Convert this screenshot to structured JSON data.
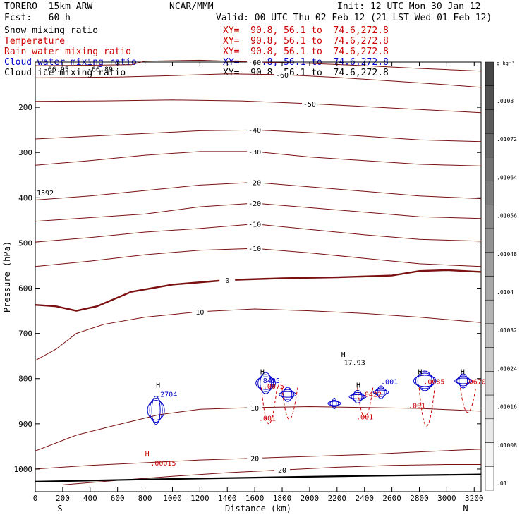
{
  "header": {
    "model": "TORERO  15km ARW",
    "org": "NCAR/MMM",
    "init": "Init: 12 UTC Mon 30 Jan 12",
    "fcst": "Fcst:   60 h",
    "valid": "Valid: 00 UTC Thu 02 Feb 12 (21 LST Wed 01 Feb 12)"
  },
  "fields": [
    {
      "name": "Snow mixing ratio",
      "xy": "",
      "color": "#000000"
    },
    {
      "name": "Temperature",
      "xy": "XY=  90.8, 56.1 to  74.6,272.8",
      "color": "#cc0000"
    },
    {
      "name": "Rain water mixing ratio",
      "xy": "XY=  90.8, 56.1 to  74.6,272.8",
      "color": "#cc0000"
    },
    {
      "name": "Cloud water mixing ratio",
      "xy": "XY=  90.8, 56.1 to  74.6,272.8",
      "color": "#0000cc"
    },
    {
      "name": "Cloud ice mixing ratio",
      "xy": "XY=  90.8, 56.1 to  74.6,272.8",
      "color": "#000000"
    }
  ],
  "snow_xy": "XY=  90.8, 56.1 to  74.6,272.8",
  "chart_data": {
    "type": "cross-section",
    "xlabel": "Distance (km)",
    "ylabel": "Pressure (hPa)",
    "xlim": [
      0,
      3250
    ],
    "ylim": [
      1050,
      100
    ],
    "x_ticks": [
      0,
      200,
      400,
      600,
      800,
      1000,
      1200,
      1400,
      1600,
      1800,
      2000,
      2200,
      2400,
      2600,
      2800,
      3000,
      3200
    ],
    "y_ticks": [
      200,
      300,
      400,
      500,
      600,
      700,
      800,
      900,
      1000
    ],
    "x_end_labels": {
      "left": "S",
      "right": "N"
    },
    "colorbar": {
      "unit": "g kg⁻¹",
      "labels": [
        ".0108",
        ".01072",
        ".01064",
        ".01056",
        ".01048",
        ".0104",
        ".01032",
        ".01024",
        ".01016",
        ".01008",
        ".01"
      ],
      "levels": 18
    },
    "temperature_contours": [
      {
        "label": "-60",
        "points": [
          [
            0,
            108
          ],
          [
            400,
            107
          ],
          [
            700,
            106
          ],
          [
            800,
            98
          ],
          [
            1200,
            96
          ],
          [
            1600,
            100
          ],
          [
            2000,
            103
          ],
          [
            2400,
            108
          ],
          [
            2800,
            114
          ],
          [
            3250,
            120
          ]
        ]
      },
      {
        "label": "-60",
        "points": [
          [
            0,
            135
          ],
          [
            600,
            133
          ],
          [
            1000,
            130
          ],
          [
            1400,
            126
          ],
          [
            1800,
            128
          ],
          [
            2200,
            134
          ],
          [
            2600,
            142
          ],
          [
            3000,
            150
          ],
          [
            3250,
            156
          ]
        ]
      },
      {
        "label": "-50",
        "points": [
          [
            0,
            187
          ],
          [
            500,
            186
          ],
          [
            1000,
            184
          ],
          [
            1500,
            186
          ],
          [
            2000,
            192
          ],
          [
            2500,
            200
          ],
          [
            3000,
            208
          ],
          [
            3250,
            212
          ]
        ]
      },
      {
        "label": "-40",
        "points": [
          [
            0,
            270
          ],
          [
            400,
            264
          ],
          [
            800,
            258
          ],
          [
            1200,
            252
          ],
          [
            1600,
            250
          ],
          [
            2000,
            256
          ],
          [
            2400,
            264
          ],
          [
            2800,
            272
          ],
          [
            3250,
            276
          ]
        ]
      },
      {
        "label": "-30",
        "points": [
          [
            0,
            328
          ],
          [
            400,
            318
          ],
          [
            800,
            306
          ],
          [
            1200,
            298
          ],
          [
            1600,
            298
          ],
          [
            2000,
            310
          ],
          [
            2400,
            318
          ],
          [
            2800,
            326
          ],
          [
            3250,
            330
          ]
        ]
      },
      {
        "label": "-20",
        "points": [
          [
            0,
            405
          ],
          [
            400,
            396
          ],
          [
            800,
            384
          ],
          [
            1200,
            372
          ],
          [
            1600,
            366
          ],
          [
            2000,
            376
          ],
          [
            2400,
            386
          ],
          [
            2800,
            396
          ],
          [
            3250,
            402
          ]
        ]
      },
      {
        "label": "-20",
        "points": [
          [
            0,
            452
          ],
          [
            400,
            444
          ],
          [
            800,
            436
          ],
          [
            1200,
            420
          ],
          [
            1600,
            412
          ],
          [
            2000,
            422
          ],
          [
            2400,
            432
          ],
          [
            2800,
            442
          ],
          [
            3250,
            446
          ]
        ]
      },
      {
        "label": "-10",
        "points": [
          [
            0,
            498
          ],
          [
            400,
            488
          ],
          [
            800,
            476
          ],
          [
            1200,
            468
          ],
          [
            1600,
            458
          ],
          [
            2000,
            470
          ],
          [
            2400,
            482
          ],
          [
            2800,
            492
          ],
          [
            3250,
            496
          ]
        ]
      },
      {
        "label": "-10",
        "points": [
          [
            0,
            552
          ],
          [
            400,
            540
          ],
          [
            800,
            526
          ],
          [
            1200,
            516
          ],
          [
            1600,
            512
          ],
          [
            2000,
            522
          ],
          [
            2400,
            534
          ],
          [
            2800,
            546
          ],
          [
            3250,
            552
          ]
        ]
      },
      {
        "label": "0",
        "points": [
          [
            0,
            637
          ],
          [
            150,
            640
          ],
          [
            300,
            650
          ],
          [
            450,
            640
          ],
          [
            700,
            608
          ],
          [
            1000,
            592
          ],
          [
            1400,
            582
          ],
          [
            1800,
            578
          ],
          [
            2200,
            576
          ],
          [
            2600,
            572
          ],
          [
            2800,
            562
          ],
          [
            3000,
            560
          ],
          [
            3250,
            564
          ]
        ]
      },
      {
        "label": "10",
        "points": [
          [
            0,
            760
          ],
          [
            150,
            735
          ],
          [
            300,
            700
          ],
          [
            500,
            680
          ],
          [
            800,
            664
          ],
          [
            1200,
            652
          ],
          [
            1600,
            646
          ],
          [
            2000,
            650
          ],
          [
            2400,
            656
          ],
          [
            2800,
            664
          ],
          [
            3250,
            676
          ]
        ]
      },
      {
        "label": "10",
        "points": [
          [
            0,
            960
          ],
          [
            300,
            925
          ],
          [
            600,
            902
          ],
          [
            900,
            880
          ],
          [
            1200,
            868
          ],
          [
            1600,
            864
          ],
          [
            2000,
            862
          ],
          [
            2400,
            864
          ],
          [
            2800,
            866
          ],
          [
            3250,
            872
          ]
        ]
      },
      {
        "label": "20",
        "points": [
          [
            0,
            1000
          ],
          [
            400,
            992
          ],
          [
            800,
            986
          ],
          [
            1200,
            980
          ],
          [
            1600,
            976
          ],
          [
            2000,
            972
          ],
          [
            2400,
            968
          ],
          [
            2800,
            962
          ],
          [
            3250,
            956
          ]
        ]
      },
      {
        "label": "20",
        "points": [
          [
            200,
            1035
          ],
          [
            600,
            1025
          ],
          [
            1000,
            1016
          ],
          [
            1400,
            1008
          ],
          [
            1800,
            1002
          ],
          [
            2200,
            996
          ],
          [
            2600,
            992
          ],
          [
            3000,
            990
          ],
          [
            3250,
            990
          ]
        ]
      }
    ],
    "surface": {
      "points": [
        [
          0,
          1028
        ],
        [
          800,
          1023
        ],
        [
          1600,
          1019
        ],
        [
          2400,
          1015
        ],
        [
          3250,
          1012
        ]
      ]
    },
    "labels_text": [
      {
        "text": "-66.95",
        "x": 60,
        "y": 121
      },
      {
        "text": "-66.89",
        "x": 380,
        "y": 121
      },
      {
        "text": "1592",
        "x": 10,
        "y": 395
      },
      {
        "text": "H",
        "x": 880,
        "y": 820
      },
      {
        "text": ".2704",
        "x": 880,
        "y": 840
      },
      {
        "text": "H",
        "x": 1640,
        "y": 790
      },
      {
        "text": "8435",
        "x": 1660,
        "y": 810
      },
      {
        "text": ".0075",
        "x": 1660,
        "y": 822
      },
      {
        "text": "H",
        "x": 2230,
        "y": 752
      },
      {
        "text": "17.93",
        "x": 2250,
        "y": 770
      },
      {
        "text": "H",
        "x": 2340,
        "y": 820
      },
      {
        "text": ".0422",
        "x": 2370,
        "y": 840
      },
      {
        "text": ".001",
        "x": 2520,
        "y": 812
      },
      {
        "text": "H",
        "x": 2790,
        "y": 790
      },
      {
        "text": ".0085",
        "x": 2830,
        "y": 812
      },
      {
        "text": "H",
        "x": 3100,
        "y": 790
      },
      {
        "text": ".0670",
        "x": 3130,
        "y": 812
      },
      {
        "text": ".001",
        "x": 1630,
        "y": 893
      },
      {
        "text": ".001",
        "x": 2340,
        "y": 890
      },
      {
        "text": ".001",
        "x": 2720,
        "y": 865
      },
      {
        "text": "H",
        "x": 800,
        "y": 972
      },
      {
        "text": ".00015",
        "x": 840,
        "y": 992
      }
    ]
  }
}
